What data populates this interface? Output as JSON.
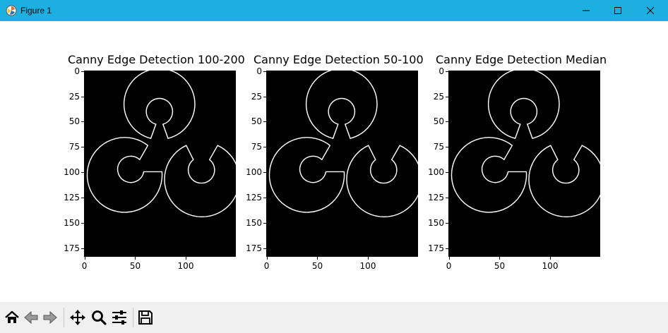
{
  "window": {
    "title": "Figure 1",
    "controls": [
      "minimize",
      "maximize",
      "close"
    ]
  },
  "colors": {
    "titlebar": "#1bb0e0",
    "toolbar": "#f0f0f0",
    "image_background": "#000000",
    "edge": "#ffffff"
  },
  "panels": [
    {
      "title": "Canny Edge Detection 100-200",
      "yticks": [
        "0",
        "25",
        "50",
        "75",
        "100",
        "125",
        "150",
        "175"
      ],
      "xticks": [
        "0",
        "50",
        "100"
      ]
    },
    {
      "title": "Canny Edge Detection 50-100",
      "yticks": [
        "0",
        "25",
        "50",
        "75",
        "100",
        "125",
        "150",
        "175"
      ],
      "xticks": [
        "0",
        "50",
        "100"
      ]
    },
    {
      "title": "Canny Edge Detection Median",
      "yticks": [
        "0",
        "25",
        "50",
        "75",
        "100",
        "125",
        "150",
        "175"
      ],
      "xticks": [
        "0",
        "50",
        "100"
      ]
    }
  ],
  "toolbar": {
    "tools": [
      "home-icon",
      "back-icon",
      "forward-icon",
      "pan-icon",
      "zoom-icon",
      "configure-subplots-icon",
      "save-icon"
    ]
  }
}
